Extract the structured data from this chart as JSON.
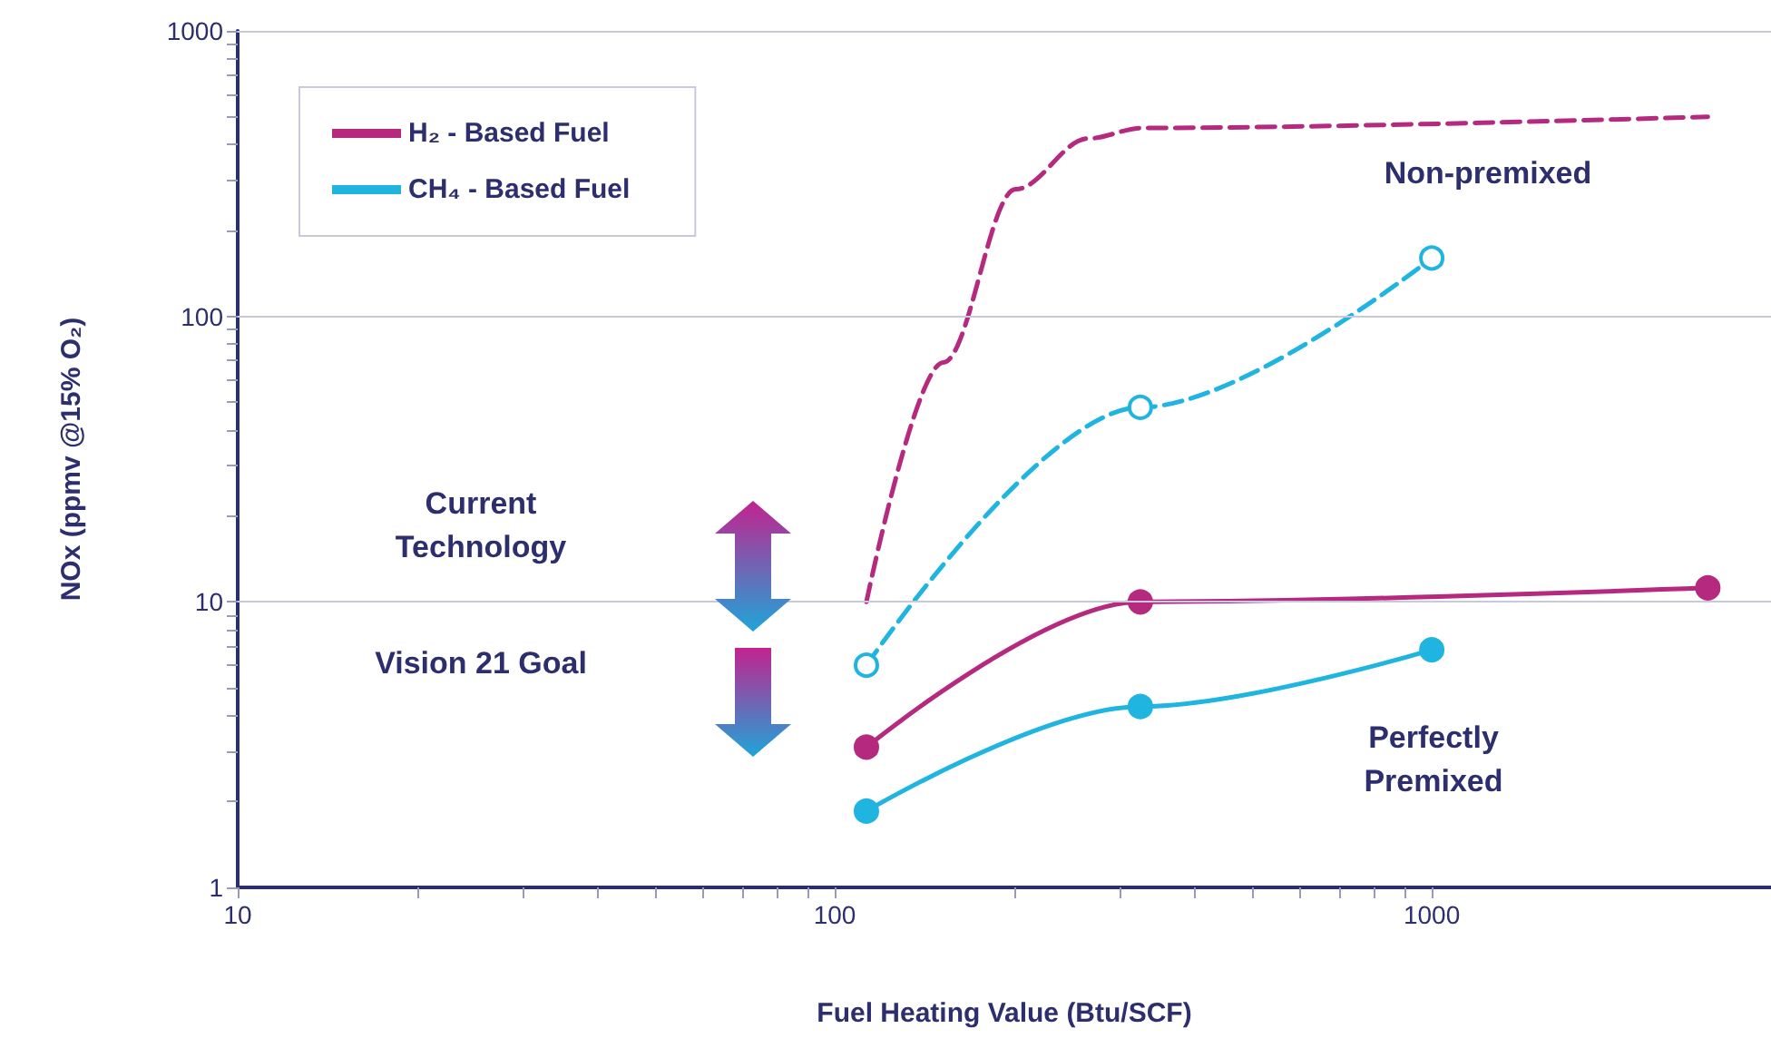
{
  "chart_data": {
    "type": "line",
    "xlabel": "Fuel Heating Value (Btu/SCF)",
    "ylabel": "NOx (ppmv @15% O₂)",
    "log": "xy",
    "grid": "y",
    "legend": "top left",
    "xlim": [
      10,
      3700
    ],
    "ylim": [
      1,
      1000
    ],
    "xticks": [
      10,
      {
        "value": 20,
        "label": null
      },
      {
        "value": 30,
        "label": null
      },
      {
        "value": 40,
        "label": null
      },
      {
        "value": 50,
        "label": null
      },
      {
        "value": 60,
        "label": null
      },
      {
        "value": 70,
        "label": null
      },
      {
        "value": 80,
        "label": null
      },
      {
        "value": 90,
        "label": null
      },
      100,
      {
        "value": 200,
        "label": null
      },
      {
        "value": 300,
        "label": null
      },
      {
        "value": 400,
        "label": null
      },
      {
        "value": 500,
        "label": null
      },
      {
        "value": 600,
        "label": null
      },
      {
        "value": 700,
        "label": null
      },
      {
        "value": 800,
        "label": null
      },
      {
        "value": 900,
        "label": null
      },
      1000
    ],
    "yticks": [
      1,
      {
        "value": 2,
        "label": null
      },
      {
        "value": 3,
        "label": null
      },
      {
        "value": 4,
        "label": null
      },
      {
        "value": 5,
        "label": null
      },
      {
        "value": 6,
        "label": null
      },
      {
        "value": 7,
        "label": null
      },
      {
        "value": 8,
        "label": null
      },
      {
        "value": 9,
        "label": null
      },
      10,
      {
        "value": 20,
        "label": null
      },
      {
        "value": 30,
        "label": null
      },
      {
        "value": 40,
        "label": null
      },
      {
        "value": 50,
        "label": null
      },
      {
        "value": 60,
        "label": null
      },
      {
        "value": 70,
        "label": null
      },
      {
        "value": 80,
        "label": null
      },
      {
        "value": 90,
        "label": null
      },
      100,
      {
        "value": 200,
        "label": null
      },
      {
        "value": 300,
        "label": null
      },
      {
        "value": 400,
        "label": null
      },
      {
        "value": 500,
        "label": null
      },
      {
        "value": 600,
        "label": null
      },
      {
        "value": 700,
        "label": null
      },
      {
        "value": 800,
        "label": null
      },
      {
        "value": 900,
        "label": null
      },
      1000
    ],
    "series": [
      {
        "name": "H₂ - Based Fuel",
        "color": "#b5297f",
        "line_style": "solid",
        "marker": "circle",
        "x": [
          113,
          325,
          2900
        ],
        "values": [
          3.1,
          10,
          11.2
        ]
      },
      {
        "name": "CH₄ - Based Fuel",
        "color": "#1fb5e0",
        "line_style": "solid",
        "marker": "circle",
        "x": [
          113,
          325,
          1000
        ],
        "values": [
          1.85,
          4.3,
          6.8
        ]
      },
      {
        "color": "#b5297f",
        "line_style": "dashed",
        "marker": "none",
        "x": [
          113,
          152,
          201,
          266,
          328,
          2900
        ],
        "values": [
          10,
          69,
          279,
          420,
          457,
          500
        ]
      },
      {
        "color": "#1fb5e0",
        "line_style": "dashed",
        "marker": "circle",
        "x": [
          113,
          325,
          1000
        ],
        "values": [
          6,
          48,
          160
        ]
      }
    ],
    "annotations": [
      "Current Technology",
      "Vision 21 Goal",
      "Non-premixed",
      "Perfectly Premixed"
    ]
  }
}
